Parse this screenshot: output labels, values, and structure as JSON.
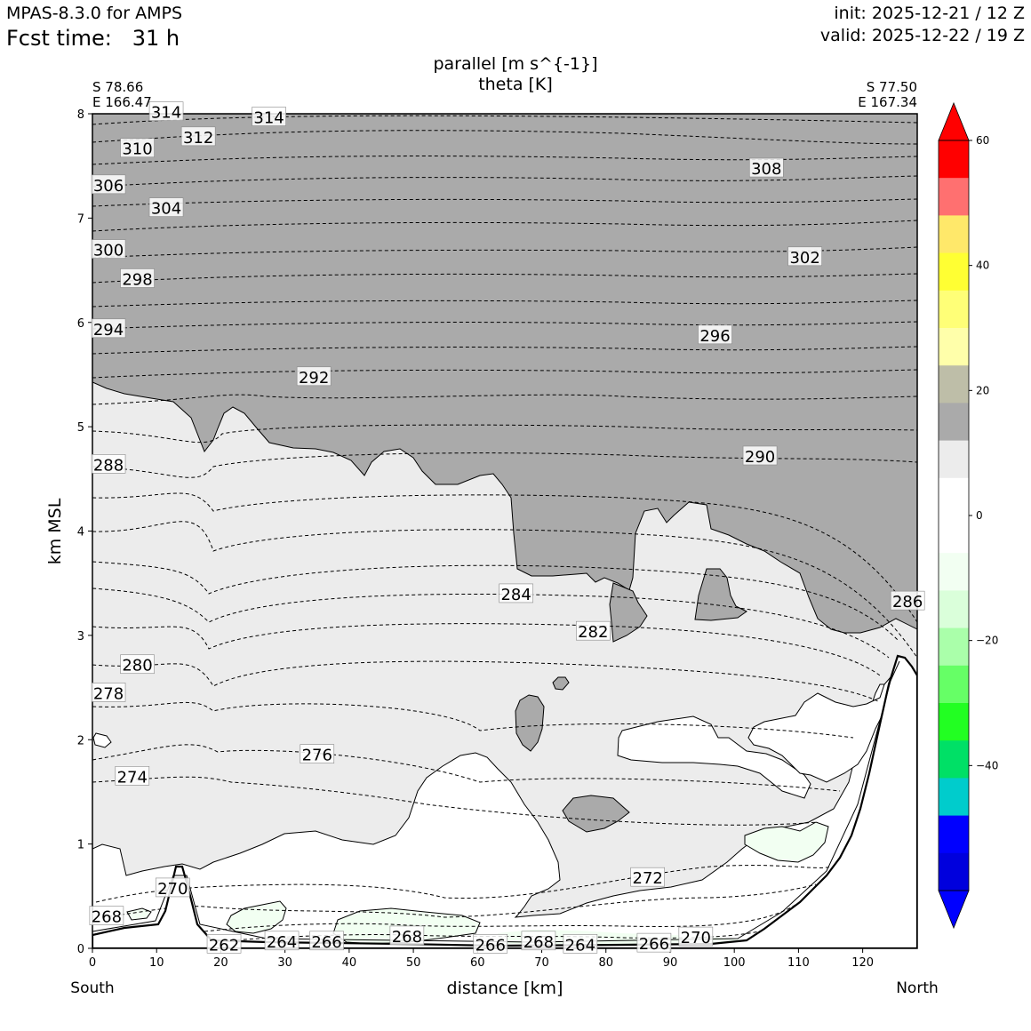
{
  "header": {
    "model": "MPAS-8.3.0 for AMPS",
    "fcst_label": "Fcst time:",
    "fcst_value": "31 h",
    "init": "init: 2025-12-21 / 12 Z",
    "valid": "valid: 2025-12-22 / 19 Z"
  },
  "chart_data": {
    "type": "cross-section",
    "title_line1": "parallel [m s^{-1}]",
    "title_line2": "theta [K]",
    "xlabel": "distance [km]",
    "ylabel": "km MSL",
    "xlim": [
      0,
      128.5
    ],
    "ylim": [
      0,
      8
    ],
    "xticks": [
      0,
      10,
      20,
      30,
      40,
      50,
      60,
      70,
      80,
      90,
      100,
      110,
      120
    ],
    "yticks": [
      0,
      1,
      2,
      3,
      4,
      5,
      6,
      7,
      8
    ],
    "left_end": {
      "lat": "S 78.66",
      "lon": "E 166.47",
      "dir": "South"
    },
    "right_end": {
      "lat": "S 77.50",
      "lon": "E 167.34",
      "dir": "North"
    },
    "colorbar": {
      "ticks": [
        60,
        40,
        20,
        0,
        -20,
        -40
      ],
      "colors_top_to_bottom": [
        "#ff0000",
        "#ff7070",
        "#ffe86a",
        "#ffff33",
        "#ffff77",
        "#ffffaa",
        "#bebea8",
        "#aaaaaa",
        "#ececec",
        "#ffffff",
        "#ffffff",
        "#f2fff2",
        "#daffda",
        "#aaffaa",
        "#66ff66",
        "#22ff22",
        "#00e066",
        "#00cccc",
        "#0000ff",
        "#0000dd"
      ],
      "extend_top": "#ff0000",
      "extend_bottom": "#0000ff"
    },
    "theta_labels": [
      {
        "v": "314",
        "x": 11.5,
        "y": 8.02
      },
      {
        "v": "314",
        "x": 27.5,
        "y": 7.97
      },
      {
        "v": "312",
        "x": 16.5,
        "y": 7.78
      },
      {
        "v": "310",
        "x": 7,
        "y": 7.67
      },
      {
        "v": "308",
        "x": 105,
        "y": 7.48
      },
      {
        "v": "306",
        "x": 2.5,
        "y": 7.32
      },
      {
        "v": "304",
        "x": 11.5,
        "y": 7.1
      },
      {
        "v": "302",
        "x": 111,
        "y": 6.63
      },
      {
        "v": "300",
        "x": 2.5,
        "y": 6.7
      },
      {
        "v": "298",
        "x": 7,
        "y": 6.42
      },
      {
        "v": "296",
        "x": 97,
        "y": 5.88
      },
      {
        "v": "294",
        "x": 2.5,
        "y": 5.94
      },
      {
        "v": "292",
        "x": 34.5,
        "y": 5.48
      },
      {
        "v": "290",
        "x": 104,
        "y": 4.72
      },
      {
        "v": "288",
        "x": 2.5,
        "y": 4.64
      },
      {
        "v": "286",
        "x": 127,
        "y": 3.33
      },
      {
        "v": "284",
        "x": 66,
        "y": 3.4
      },
      {
        "v": "282",
        "x": 78,
        "y": 3.04
      },
      {
        "v": "280",
        "x": 7,
        "y": 2.72
      },
      {
        "v": "278",
        "x": 2.5,
        "y": 2.45
      },
      {
        "v": "276",
        "x": 35,
        "y": 1.86
      },
      {
        "v": "274",
        "x": 6.2,
        "y": 1.65
      },
      {
        "v": "272",
        "x": 86.5,
        "y": 0.68
      },
      {
        "v": "270",
        "x": 12.5,
        "y": 0.58
      },
      {
        "v": "270",
        "x": 94,
        "y": 0.11
      },
      {
        "v": "268",
        "x": 2.2,
        "y": 0.31
      },
      {
        "v": "268",
        "x": 49,
        "y": 0.12
      },
      {
        "v": "268",
        "x": 69.5,
        "y": 0.07
      },
      {
        "v": "266",
        "x": 36.5,
        "y": 0.07
      },
      {
        "v": "266",
        "x": 62,
        "y": 0.04
      },
      {
        "v": "266",
        "x": 87.5,
        "y": 0.05
      },
      {
        "v": "264",
        "x": 29.5,
        "y": 0.07
      },
      {
        "v": "264",
        "x": 76,
        "y": 0.04
      },
      {
        "v": "262",
        "x": 20.5,
        "y": 0.04
      }
    ],
    "grid": false,
    "legend": "colorbar-right"
  }
}
